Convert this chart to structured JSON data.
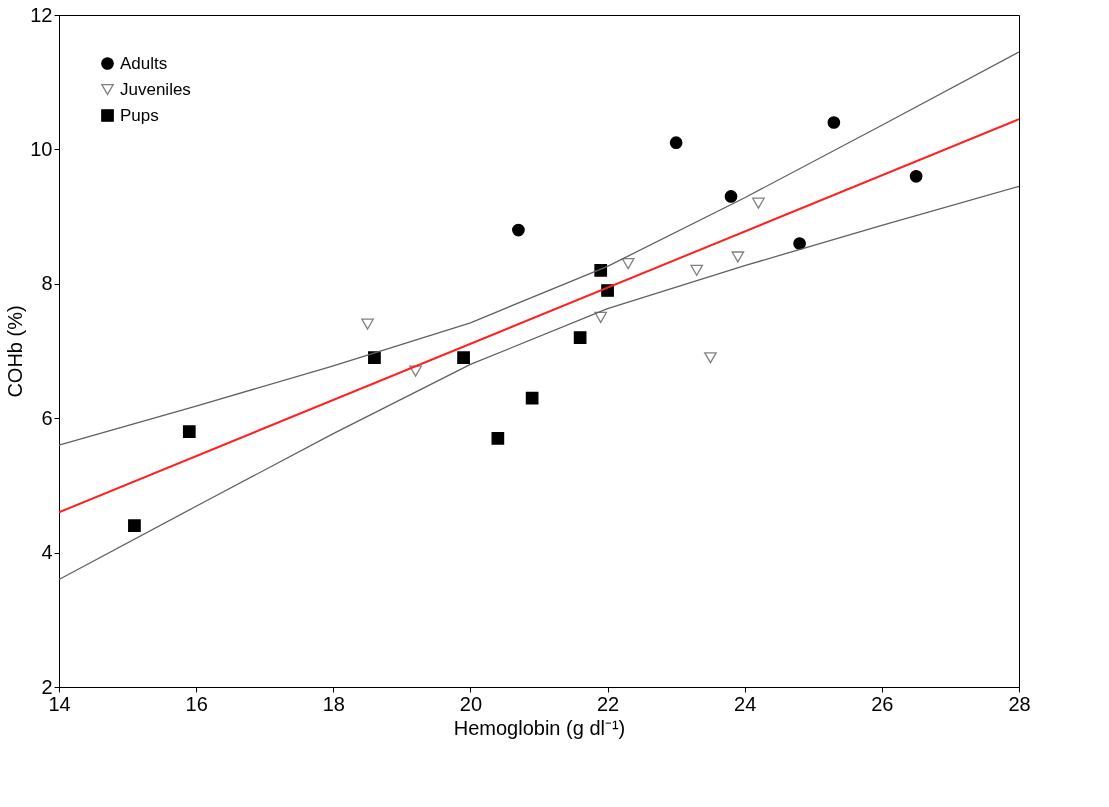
{
  "chart_data": {
    "type": "scatter",
    "xlabel": "Hemoglobin (g dl⁻¹)",
    "ylabel": "COHb (%)",
    "xlim": [
      14,
      28
    ],
    "xticks": [
      14,
      16,
      18,
      20,
      22,
      24,
      26,
      28
    ],
    "ylim": [
      2,
      12
    ],
    "yticks": [
      2,
      4,
      6,
      8,
      10,
      12
    ],
    "grid": false,
    "legend": "top left",
    "series": [
      {
        "name": "Adults",
        "color": "#000000",
        "marker": "circle",
        "x": [
          20.7,
          23.0,
          23.8,
          25.3,
          26.5,
          24.8
        ],
        "values": [
          8.8,
          10.1,
          9.3,
          10.4,
          9.6,
          8.6
        ]
      },
      {
        "name": "Juveniles",
        "color": "#808080",
        "marker": "triangle",
        "x": [
          18.5,
          19.2,
          21.9,
          22.3,
          23.3,
          23.9,
          24.2,
          23.5
        ],
        "values": [
          7.4,
          6.7,
          7.5,
          8.3,
          8.2,
          8.4,
          9.2,
          6.9
        ]
      },
      {
        "name": "Pups",
        "color": "#000000",
        "marker": "square",
        "x": [
          15.1,
          15.9,
          18.6,
          19.9,
          20.4,
          20.9,
          21.6,
          21.9,
          22.0
        ],
        "values": [
          4.4,
          5.8,
          6.9,
          6.9,
          5.7,
          6.3,
          7.2,
          8.2,
          7.9
        ]
      },
      {
        "type": "line",
        "color": "#ff2020",
        "x": [
          14,
          28
        ],
        "values": [
          4.6,
          10.45
        ]
      },
      {
        "type": "line",
        "color": "#606060",
        "x": [
          14,
          16,
          18,
          20,
          22,
          24,
          26,
          28
        ],
        "values": [
          5.6,
          6.18,
          6.78,
          7.42,
          8.26,
          9.28,
          10.36,
          11.45
        ]
      },
      {
        "type": "line",
        "color": "#606060",
        "x": [
          14,
          16,
          18,
          20,
          22,
          24,
          26,
          28
        ],
        "values": [
          3.6,
          4.69,
          5.77,
          6.8,
          7.63,
          8.27,
          8.87,
          9.45
        ]
      }
    ]
  }
}
